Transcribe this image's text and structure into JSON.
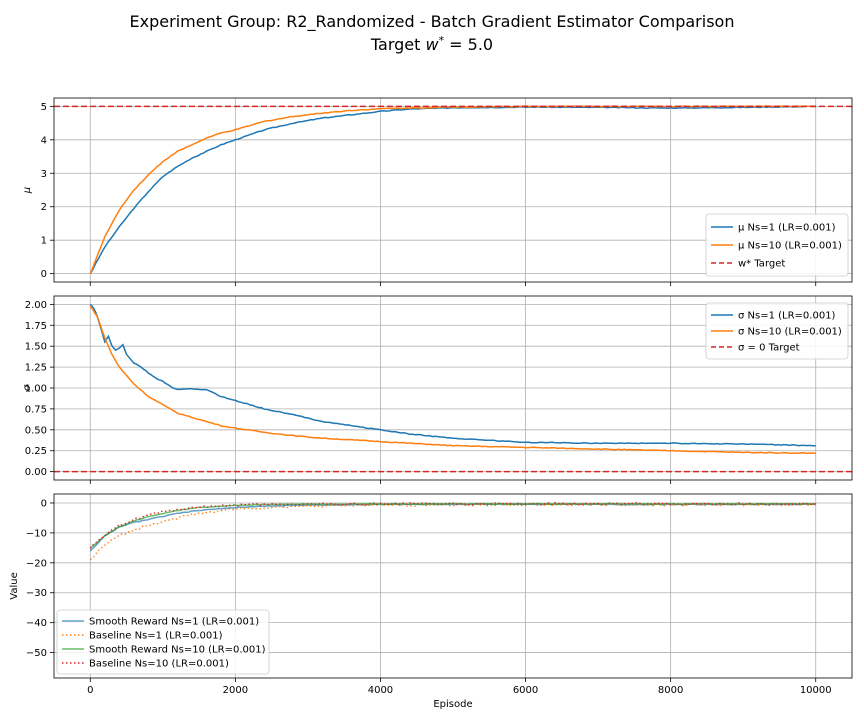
{
  "figure": {
    "title_line1": "Experiment Group: R2_Randomized - Batch Gradient Estimator Comparison",
    "title_line2": "Target w* = 5.0"
  },
  "chart_data": [
    {
      "type": "line",
      "ylabel": "μ",
      "xlim": [
        -500,
        10500
      ],
      "ylim": [
        -0.25,
        5.25
      ],
      "xticks": [
        0,
        2000,
        4000,
        6000,
        8000,
        10000
      ],
      "yticks": [
        0,
        1,
        2,
        3,
        4,
        5
      ],
      "grid": true,
      "legend_position": "lower right",
      "hline": {
        "name": "w* Target",
        "value": 5.0,
        "color": "#d62728",
        "dash": true
      },
      "series": [
        {
          "name": "μ Ns=1 (LR=0.001)",
          "color": "#1f77b4",
          "style": "solid",
          "x": [
            0,
            200,
            400,
            600,
            800,
            1000,
            1200,
            1400,
            1600,
            1800,
            2000,
            2400,
            2800,
            3200,
            3600,
            4000,
            4400,
            5000,
            6000,
            7000,
            8000,
            9000,
            10000
          ],
          "y": [
            0,
            0.8,
            1.4,
            1.95,
            2.45,
            2.9,
            3.2,
            3.45,
            3.65,
            3.85,
            4.0,
            4.3,
            4.5,
            4.65,
            4.75,
            4.85,
            4.92,
            4.96,
            4.98,
            4.97,
            4.95,
            4.97,
            5.0
          ]
        },
        {
          "name": "μ Ns=10 (LR=0.001)",
          "color": "#ff7f0e",
          "style": "solid",
          "x": [
            0,
            200,
            400,
            600,
            800,
            1000,
            1200,
            1400,
            1600,
            1800,
            2000,
            2400,
            2800,
            3200,
            3600,
            4000,
            5000,
            6000,
            7000,
            8000,
            9000,
            10000
          ],
          "y": [
            0,
            1.1,
            1.9,
            2.5,
            2.95,
            3.35,
            3.65,
            3.85,
            4.05,
            4.2,
            4.3,
            4.55,
            4.7,
            4.8,
            4.88,
            4.93,
            4.98,
            5.0,
            5.0,
            5.0,
            5.0,
            5.0
          ]
        }
      ]
    },
    {
      "type": "line",
      "ylabel": "σ",
      "xlim": [
        -500,
        10500
      ],
      "ylim": [
        -0.1,
        2.1
      ],
      "xticks": [
        0,
        2000,
        4000,
        6000,
        8000,
        10000
      ],
      "yticks": [
        0.0,
        0.25,
        0.5,
        0.75,
        1.0,
        1.25,
        1.5,
        1.75,
        2.0
      ],
      "ytick_labels": [
        "0.00",
        "0.25",
        "0.50",
        "0.75",
        "1.00",
        "1.25",
        "1.50",
        "1.75",
        "2.00"
      ],
      "grid": true,
      "legend_position": "upper right",
      "hline": {
        "name": "σ = 0 Target",
        "value": 0.0,
        "color": "#d62728",
        "dash": true
      },
      "series": [
        {
          "name": "σ Ns=1 (LR=0.001)",
          "color": "#1f77b4",
          "style": "solid",
          "x": [
            0,
            50,
            100,
            150,
            200,
            250,
            300,
            350,
            400,
            450,
            500,
            600,
            700,
            800,
            900,
            1000,
            1100,
            1200,
            1400,
            1600,
            1800,
            2000,
            2200,
            2400,
            2800,
            3200,
            3600,
            4000,
            4400,
            5000,
            6000,
            7000,
            8000,
            9000,
            10000
          ],
          "y": [
            2.0,
            1.95,
            1.85,
            1.7,
            1.55,
            1.62,
            1.5,
            1.45,
            1.48,
            1.52,
            1.4,
            1.3,
            1.25,
            1.18,
            1.12,
            1.08,
            1.02,
            0.98,
            0.99,
            0.98,
            0.9,
            0.85,
            0.8,
            0.75,
            0.68,
            0.6,
            0.55,
            0.5,
            0.45,
            0.4,
            0.35,
            0.34,
            0.34,
            0.33,
            0.31
          ]
        },
        {
          "name": "σ Ns=10 (LR=0.001)",
          "color": "#ff7f0e",
          "style": "solid",
          "x": [
            0,
            100,
            200,
            300,
            400,
            500,
            600,
            800,
            1000,
            1200,
            1400,
            1600,
            1800,
            2000,
            2400,
            2800,
            3200,
            4000,
            5000,
            6000,
            7000,
            8000,
            9000,
            10000
          ],
          "y": [
            1.98,
            1.85,
            1.6,
            1.4,
            1.25,
            1.15,
            1.05,
            0.9,
            0.8,
            0.7,
            0.65,
            0.6,
            0.55,
            0.52,
            0.47,
            0.43,
            0.4,
            0.36,
            0.31,
            0.29,
            0.27,
            0.25,
            0.23,
            0.22
          ]
        }
      ]
    },
    {
      "type": "line",
      "ylabel": "Value",
      "xlabel": "Episode",
      "xlim": [
        -500,
        10500
      ],
      "ylim": [
        -58.5,
        3.0
      ],
      "xticks": [
        0,
        2000,
        4000,
        6000,
        8000,
        10000
      ],
      "yticks": [
        0,
        -10,
        -20,
        -30,
        -40,
        -50
      ],
      "grid": true,
      "legend_position": "lower left",
      "series": [
        {
          "name": "Smooth Reward Ns=1 (LR=0.001)",
          "color": "#1f77b4",
          "style": "solid",
          "x": [
            0,
            200,
            400,
            600,
            800,
            1000,
            1200,
            1500,
            2000,
            2500,
            3000,
            4000,
            6000,
            8000,
            10000
          ],
          "y": [
            -16,
            -11,
            -8,
            -6.5,
            -5.5,
            -4.5,
            -3.5,
            -2.5,
            -1.5,
            -1.0,
            -0.7,
            -0.5,
            -0.4,
            -0.5,
            -0.5
          ]
        },
        {
          "name": "Baseline Ns=1 (LR=0.001)",
          "color": "#ff7f0e",
          "style": "dotted",
          "x": [
            0,
            200,
            400,
            600,
            800,
            1000,
            1200,
            1500,
            2000,
            2500,
            3000,
            4000,
            6000,
            8000,
            10000
          ],
          "y": [
            -19,
            -14,
            -11,
            -9,
            -7.5,
            -6,
            -5,
            -3.5,
            -2,
            -1.5,
            -1,
            -0.7,
            -0.6,
            -0.6,
            -0.6
          ]
        },
        {
          "name": "Smooth Reward Ns=10 (LR=0.001)",
          "color": "#2ca02c",
          "style": "solid",
          "x": [
            0,
            200,
            400,
            600,
            800,
            1000,
            1200,
            1500,
            2000,
            2500,
            3000,
            4000,
            6000,
            8000,
            10000
          ],
          "y": [
            -15,
            -11,
            -8,
            -6,
            -4.5,
            -3.5,
            -2.5,
            -1.5,
            -0.8,
            -0.5,
            -0.4,
            -0.3,
            -0.3,
            -0.3,
            -0.3
          ]
        },
        {
          "name": "Baseline Ns=10 (LR=0.001)",
          "color": "#d62728",
          "style": "dotted",
          "x": [
            0,
            200,
            400,
            600,
            800,
            1000,
            1200,
            1500,
            2000,
            2500,
            3000,
            4000,
            6000,
            8000,
            10000
          ],
          "y": [
            -15,
            -11,
            -7.5,
            -5.5,
            -4,
            -3,
            -2.2,
            -1.3,
            -0.7,
            -0.5,
            -0.4,
            -0.3,
            -0.3,
            -0.3,
            -0.3
          ]
        }
      ]
    }
  ]
}
